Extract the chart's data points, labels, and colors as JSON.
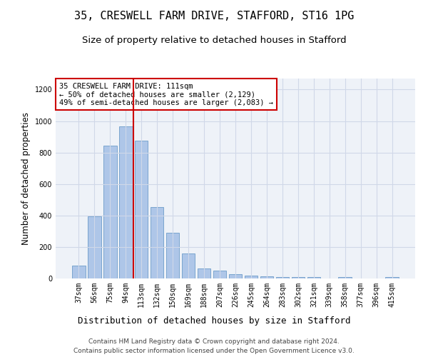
{
  "title": "35, CRESWELL FARM DRIVE, STAFFORD, ST16 1PG",
  "subtitle": "Size of property relative to detached houses in Stafford",
  "xlabel": "Distribution of detached houses by size in Stafford",
  "ylabel": "Number of detached properties",
  "categories": [
    "37sqm",
    "56sqm",
    "75sqm",
    "94sqm",
    "113sqm",
    "132sqm",
    "150sqm",
    "169sqm",
    "188sqm",
    "207sqm",
    "226sqm",
    "245sqm",
    "264sqm",
    "283sqm",
    "302sqm",
    "321sqm",
    "339sqm",
    "358sqm",
    "377sqm",
    "396sqm",
    "415sqm"
  ],
  "values": [
    80,
    395,
    845,
    965,
    875,
    455,
    290,
    160,
    65,
    48,
    28,
    20,
    15,
    8,
    8,
    8,
    0,
    8,
    0,
    0,
    8
  ],
  "bar_color": "#aec6e8",
  "bar_edge_color": "#5a8fc2",
  "vline_x_index": 4,
  "vline_color": "#cc0000",
  "annotation_line1": "35 CRESWELL FARM DRIVE: 111sqm",
  "annotation_line2": "← 50% of detached houses are smaller (2,129)",
  "annotation_line3": "49% of semi-detached houses are larger (2,083) →",
  "annotation_box_color": "#ffffff",
  "annotation_box_edge_color": "#cc0000",
  "ylim": [
    0,
    1270
  ],
  "yticks": [
    0,
    200,
    400,
    600,
    800,
    1000,
    1200
  ],
  "grid_color": "#d0d8e8",
  "background_color": "#eef2f8",
  "footer_line1": "Contains HM Land Registry data © Crown copyright and database right 2024.",
  "footer_line2": "Contains public sector information licensed under the Open Government Licence v3.0.",
  "title_fontsize": 11,
  "subtitle_fontsize": 9.5,
  "xlabel_fontsize": 9,
  "ylabel_fontsize": 8.5,
  "tick_fontsize": 7,
  "annotation_fontsize": 7.5,
  "footer_fontsize": 6.5
}
